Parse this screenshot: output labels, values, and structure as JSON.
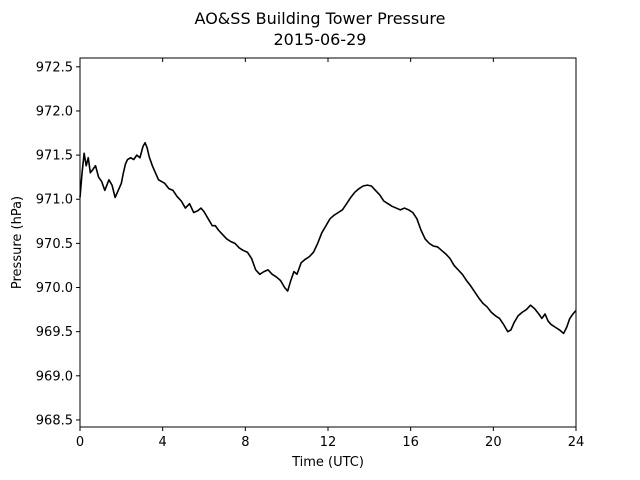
{
  "chart_data": {
    "type": "line",
    "title": "AO&SS Building Tower Pressure",
    "subtitle": "2015-06-29",
    "xlabel": "Time (UTC)",
    "ylabel": "Pressure (hPa)",
    "xlim": [
      0,
      24
    ],
    "ylim": [
      968.42,
      972.6
    ],
    "xticks": [
      0,
      4,
      8,
      12,
      16,
      20,
      24
    ],
    "yticks": [
      968.5,
      969.0,
      969.5,
      970.0,
      970.5,
      971.0,
      971.5,
      972.0,
      972.5
    ],
    "ytick_labels": [
      "968.5",
      "969.0",
      "969.5",
      "970.0",
      "970.5",
      "971.0",
      "971.5",
      "972.0",
      "972.5"
    ],
    "grid": false,
    "line_color": "#000000",
    "series": [
      {
        "x": [
          0.0,
          0.1,
          0.2,
          0.3,
          0.4,
          0.5,
          0.6,
          0.75,
          0.9,
          1.05,
          1.2,
          1.4,
          1.55,
          1.7,
          1.85,
          2.0,
          2.1,
          2.2,
          2.3,
          2.45,
          2.6,
          2.75,
          2.9,
          3.05,
          3.15,
          3.25,
          3.35,
          3.5,
          3.65,
          3.8,
          3.95,
          4.1,
          4.3,
          4.5,
          4.7,
          4.9,
          5.1,
          5.3,
          5.5,
          5.7,
          5.85,
          6.0,
          6.2,
          6.4,
          6.55,
          6.7,
          6.9,
          7.1,
          7.3,
          7.5,
          7.7,
          7.9,
          8.1,
          8.3,
          8.5,
          8.7,
          8.9,
          9.1,
          9.3,
          9.5,
          9.7,
          9.9,
          10.05,
          10.2,
          10.35,
          10.5,
          10.7,
          10.9,
          11.1,
          11.3,
          11.5,
          11.7,
          11.9,
          12.1,
          12.3,
          12.5,
          12.7,
          12.9,
          13.1,
          13.3,
          13.5,
          13.7,
          13.9,
          14.1,
          14.3,
          14.5,
          14.7,
          14.9,
          15.1,
          15.3,
          15.5,
          15.7,
          15.9,
          16.1,
          16.3,
          16.5,
          16.7,
          16.9,
          17.1,
          17.3,
          17.5,
          17.7,
          17.9,
          18.1,
          18.3,
          18.5,
          18.7,
          18.9,
          19.1,
          19.3,
          19.5,
          19.7,
          19.9,
          20.1,
          20.3,
          20.5,
          20.7,
          20.85,
          21.0,
          21.2,
          21.4,
          21.6,
          21.8,
          22.0,
          22.2,
          22.35,
          22.5,
          22.65,
          22.8,
          23.0,
          23.2,
          23.4,
          23.55,
          23.7,
          23.85,
          24.0
        ],
        "y": [
          971.02,
          971.3,
          971.52,
          971.38,
          971.47,
          971.3,
          971.33,
          971.38,
          971.25,
          971.2,
          971.1,
          971.22,
          971.16,
          971.02,
          971.1,
          971.18,
          971.3,
          971.4,
          971.45,
          971.47,
          971.45,
          971.5,
          971.47,
          971.6,
          971.64,
          971.58,
          971.48,
          971.38,
          971.3,
          971.22,
          971.2,
          971.18,
          971.12,
          971.1,
          971.03,
          970.98,
          970.9,
          970.95,
          970.85,
          970.87,
          970.9,
          970.86,
          970.78,
          970.7,
          970.7,
          970.65,
          970.6,
          970.55,
          970.52,
          970.5,
          970.45,
          970.42,
          970.4,
          970.33,
          970.2,
          970.15,
          970.18,
          970.2,
          970.15,
          970.12,
          970.08,
          970.0,
          969.96,
          970.08,
          970.18,
          970.15,
          970.28,
          970.32,
          970.35,
          970.4,
          970.5,
          970.62,
          970.7,
          970.78,
          970.82,
          970.85,
          970.88,
          970.95,
          971.02,
          971.08,
          971.12,
          971.15,
          971.16,
          971.15,
          971.1,
          971.05,
          970.98,
          970.95,
          970.92,
          970.9,
          970.88,
          970.9,
          970.88,
          970.85,
          970.78,
          970.65,
          970.55,
          970.5,
          970.47,
          970.46,
          970.42,
          970.38,
          970.33,
          970.25,
          970.2,
          970.15,
          970.08,
          970.02,
          969.95,
          969.88,
          969.82,
          969.78,
          969.72,
          969.68,
          969.65,
          969.58,
          969.5,
          969.52,
          969.6,
          969.68,
          969.72,
          969.75,
          969.8,
          969.76,
          969.7,
          969.65,
          969.7,
          969.62,
          969.58,
          969.55,
          969.52,
          969.48,
          969.55,
          969.65,
          969.7,
          969.74
        ]
      }
    ]
  }
}
